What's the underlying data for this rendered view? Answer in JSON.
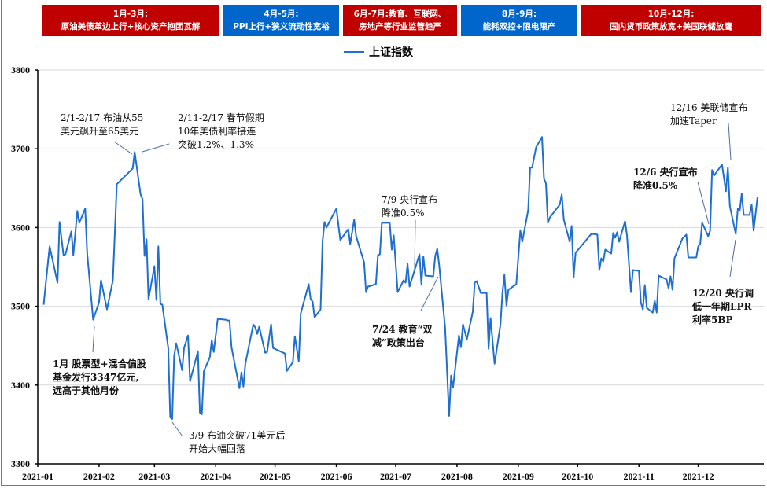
{
  "periods": [
    {
      "line1": "1月-3月:",
      "line2": "原油美债革边上行+核心资产抱团瓦解",
      "color": "#C00000"
    },
    {
      "line1": "4月-5月:",
      "line2": "PPI上行+狭义流动性宽裕",
      "color": "#0066CC"
    },
    {
      "line1": "6月-7月:教育、互联网、",
      "line2": "房地产等行业监管趋严",
      "color": "#C00000"
    },
    {
      "line1": "8月-9月:",
      "line2": "能耗双控+限电限产",
      "color": "#0066CC"
    },
    {
      "line1": "10月-12月:",
      "line2": "国内货币政策放宽+美国联储放鹰",
      "color": "#C00000"
    }
  ],
  "annotations": [
    {
      "lines": [
        "2/1-2/17 布油从55",
        "美元飙升至65美元"
      ],
      "bold": false
    },
    {
      "lines": [
        "2/11-2/17 春节假期",
        "10年美债利率接连",
        "突破1.2%、1.3%"
      ],
      "bold": false
    },
    {
      "lines": [
        "1月 股票型+混合偏股",
        "基金发行3347亿元,",
        "远高于其他月份"
      ],
      "bold": true
    },
    {
      "lines": [
        "3/9 布油突破71美元后",
        "开始大幅回落"
      ],
      "bold": false
    },
    {
      "lines": [
        "7/9 央行宣布",
        "降准0.5%"
      ],
      "bold": false
    },
    {
      "lines": [
        "7/24 教育“双",
        "减”政策出台"
      ],
      "bold": true
    },
    {
      "lines": [
        "12/6 央行宣布",
        "降准0.5%"
      ],
      "bold": true
    },
    {
      "lines": [
        "12/16 美联储宣布",
        "加速Taper"
      ],
      "bold": false
    },
    {
      "lines": [
        "12/20 央行调",
        "低一年期LPR",
        "利率5BP"
      ],
      "bold": true
    }
  ],
  "chart_data": {
    "type": "line",
    "title": "",
    "xlabel": "",
    "ylabel": "",
    "ylim": [
      3300,
      3800
    ],
    "yticks": [
      3300,
      3400,
      3500,
      3600,
      3700,
      3800
    ],
    "xticks": [
      "2021-01",
      "2021-02",
      "2021-03",
      "2021-04",
      "2021-05",
      "2021-06",
      "2021-07",
      "2021-08",
      "2021-09",
      "2021-10",
      "2021-11",
      "2021-12"
    ],
    "xlim": [
      "2021-01-01",
      "2021-12-31"
    ],
    "grid": true,
    "legend_position": "top-center",
    "series": [
      {
        "name": "上证指数",
        "color": "#1F6FD1",
        "points": [
          [
            "2021-01-04",
            3502
          ],
          [
            "2021-01-05",
            3528
          ],
          [
            "2021-01-07",
            3576
          ],
          [
            "2021-01-11",
            3530
          ],
          [
            "2021-01-12",
            3607
          ],
          [
            "2021-01-14",
            3565
          ],
          [
            "2021-01-15",
            3566
          ],
          [
            "2021-01-18",
            3595
          ],
          [
            "2021-01-19",
            3565
          ],
          [
            "2021-01-21",
            3621
          ],
          [
            "2021-01-22",
            3606
          ],
          [
            "2021-01-25",
            3624
          ],
          [
            "2021-01-26",
            3568
          ],
          [
            "2021-01-29",
            3483
          ],
          [
            "2021-02-01",
            3505
          ],
          [
            "2021-02-02",
            3533
          ],
          [
            "2021-02-05",
            3496
          ],
          [
            "2021-02-08",
            3533
          ],
          [
            "2021-02-10",
            3655
          ],
          [
            "2021-02-18",
            3675
          ],
          [
            "2021-02-19",
            3696
          ],
          [
            "2021-02-22",
            3642
          ],
          [
            "2021-02-23",
            3636
          ],
          [
            "2021-02-24",
            3564
          ],
          [
            "2021-02-25",
            3585
          ],
          [
            "2021-02-26",
            3509
          ],
          [
            "2021-03-01",
            3551
          ],
          [
            "2021-03-02",
            3508
          ],
          [
            "2021-03-03",
            3576
          ],
          [
            "2021-03-04",
            3503
          ],
          [
            "2021-03-05",
            3502
          ],
          [
            "2021-03-08",
            3447
          ],
          [
            "2021-03-09",
            3359
          ],
          [
            "2021-03-10",
            3357
          ],
          [
            "2021-03-11",
            3437
          ],
          [
            "2021-03-12",
            3453
          ],
          [
            "2021-03-15",
            3419
          ],
          [
            "2021-03-16",
            3447
          ],
          [
            "2021-03-18",
            3463
          ],
          [
            "2021-03-19",
            3405
          ],
          [
            "2021-03-23",
            3443
          ],
          [
            "2021-03-24",
            3365
          ],
          [
            "2021-03-25",
            3363
          ],
          [
            "2021-03-26",
            3418
          ],
          [
            "2021-03-29",
            3435
          ],
          [
            "2021-03-30",
            3457
          ],
          [
            "2021-03-31",
            3442
          ],
          [
            "2021-04-02",
            3484
          ],
          [
            "2021-04-06",
            3483
          ],
          [
            "2021-04-07",
            3482
          ],
          [
            "2021-04-08",
            3482
          ],
          [
            "2021-04-09",
            3448
          ],
          [
            "2021-04-13",
            3396
          ],
          [
            "2021-04-14",
            3416
          ],
          [
            "2021-04-15",
            3398
          ],
          [
            "2021-04-16",
            3427
          ],
          [
            "2021-04-20",
            3477
          ],
          [
            "2021-04-21",
            3473
          ],
          [
            "2021-04-22",
            3465
          ],
          [
            "2021-04-23",
            3474
          ],
          [
            "2021-04-26",
            3441
          ],
          [
            "2021-04-27",
            3442
          ],
          [
            "2021-04-29",
            3477
          ],
          [
            "2021-04-30",
            3447
          ],
          [
            "2021-05-06",
            3440
          ],
          [
            "2021-05-07",
            3418
          ],
          [
            "2021-05-10",
            3429
          ],
          [
            "2021-05-11",
            3462
          ],
          [
            "2021-05-13",
            3430
          ],
          [
            "2021-05-14",
            3491
          ],
          [
            "2021-05-18",
            3528
          ],
          [
            "2021-05-19",
            3509
          ],
          [
            "2021-05-20",
            3506
          ],
          [
            "2021-05-21",
            3486
          ],
          [
            "2021-05-24",
            3496
          ],
          [
            "2021-05-25",
            3582
          ],
          [
            "2021-05-26",
            3607
          ],
          [
            "2021-05-27",
            3600
          ],
          [
            "2021-06-01",
            3624
          ],
          [
            "2021-06-03",
            3584
          ],
          [
            "2021-06-07",
            3598
          ],
          [
            "2021-06-08",
            3579
          ],
          [
            "2021-06-10",
            3610
          ],
          [
            "2021-06-11",
            3589
          ],
          [
            "2021-06-15",
            3556
          ],
          [
            "2021-06-16",
            3518
          ],
          [
            "2021-06-17",
            3525
          ],
          [
            "2021-06-21",
            3528
          ],
          [
            "2021-06-22",
            3565
          ],
          [
            "2021-06-23",
            3566
          ],
          [
            "2021-06-24",
            3606
          ],
          [
            "2021-06-28",
            3606
          ],
          [
            "2021-06-29",
            3572
          ],
          [
            "2021-06-30",
            3590
          ],
          [
            "2021-07-02",
            3518
          ],
          [
            "2021-07-05",
            3533
          ],
          [
            "2021-07-06",
            3530
          ],
          [
            "2021-07-07",
            3554
          ],
          [
            "2021-07-08",
            3525
          ],
          [
            "2021-07-13",
            3566
          ],
          [
            "2021-07-14",
            3528
          ],
          [
            "2021-07-15",
            3563
          ],
          [
            "2021-07-16",
            3539
          ],
          [
            "2021-07-20",
            3538
          ],
          [
            "2021-07-21",
            3564
          ],
          [
            "2021-07-22",
            3573
          ],
          [
            "2021-07-23",
            3552
          ],
          [
            "2021-07-26",
            3473
          ],
          [
            "2021-07-28",
            3361
          ],
          [
            "2021-07-29",
            3412
          ],
          [
            "2021-07-30",
            3397
          ],
          [
            "2021-08-02",
            3463
          ],
          [
            "2021-08-03",
            3448
          ],
          [
            "2021-08-04",
            3477
          ],
          [
            "2021-08-06",
            3458
          ],
          [
            "2021-08-09",
            3493
          ],
          [
            "2021-08-10",
            3530
          ],
          [
            "2021-08-11",
            3532
          ],
          [
            "2021-08-13",
            3517
          ],
          [
            "2021-08-16",
            3517
          ],
          [
            "2021-08-17",
            3446
          ],
          [
            "2021-08-18",
            3485
          ],
          [
            "2021-08-20",
            3427
          ],
          [
            "2021-08-23",
            3477
          ],
          [
            "2021-08-24",
            3517
          ],
          [
            "2021-08-25",
            3540
          ],
          [
            "2021-08-26",
            3501
          ],
          [
            "2021-08-27",
            3521
          ],
          [
            "2021-08-31",
            3528
          ],
          [
            "2021-09-02",
            3596
          ],
          [
            "2021-09-03",
            3582
          ],
          [
            "2021-09-06",
            3622
          ],
          [
            "2021-09-07",
            3676
          ],
          [
            "2021-09-08",
            3676
          ],
          [
            "2021-09-10",
            3702
          ],
          [
            "2021-09-13",
            3715
          ],
          [
            "2021-09-14",
            3662
          ],
          [
            "2021-09-15",
            3656
          ],
          [
            "2021-09-16",
            3606
          ],
          [
            "2021-09-17",
            3613
          ],
          [
            "2021-09-22",
            3629
          ],
          [
            "2021-09-23",
            3642
          ],
          [
            "2021-09-24",
            3610
          ],
          [
            "2021-09-27",
            3582
          ],
          [
            "2021-09-28",
            3602
          ],
          [
            "2021-09-29",
            3537
          ],
          [
            "2021-09-30",
            3568
          ],
          [
            "2021-10-08",
            3592
          ],
          [
            "2021-10-11",
            3591
          ],
          [
            "2021-10-12",
            3546
          ],
          [
            "2021-10-13",
            3561
          ],
          [
            "2021-10-14",
            3557
          ],
          [
            "2021-10-15",
            3572
          ],
          [
            "2021-10-18",
            3567
          ],
          [
            "2021-10-19",
            3593
          ],
          [
            "2021-10-20",
            3587
          ],
          [
            "2021-10-21",
            3594
          ],
          [
            "2021-10-22",
            3582
          ],
          [
            "2021-10-25",
            3608
          ],
          [
            "2021-10-26",
            3589
          ],
          [
            "2021-10-28",
            3518
          ],
          [
            "2021-10-29",
            3546
          ],
          [
            "2021-11-01",
            3545
          ],
          [
            "2021-11-02",
            3505
          ],
          [
            "2021-11-03",
            3496
          ],
          [
            "2021-11-04",
            3527
          ],
          [
            "2021-11-05",
            3498
          ],
          [
            "2021-11-08",
            3492
          ],
          [
            "2021-11-09",
            3507
          ],
          [
            "2021-11-10",
            3492
          ],
          [
            "2021-11-11",
            3539
          ],
          [
            "2021-11-15",
            3534
          ],
          [
            "2021-11-16",
            3523
          ],
          [
            "2021-11-17",
            3538
          ],
          [
            "2021-11-18",
            3521
          ],
          [
            "2021-11-19",
            3561
          ],
          [
            "2021-11-23",
            3586
          ],
          [
            "2021-11-25",
            3591
          ],
          [
            "2021-11-26",
            3562
          ],
          [
            "2021-11-30",
            3562
          ],
          [
            "2021-12-01",
            3576
          ],
          [
            "2021-12-02",
            3579
          ],
          [
            "2021-12-03",
            3606
          ],
          [
            "2021-12-06",
            3589
          ],
          [
            "2021-12-07",
            3596
          ],
          [
            "2021-12-08",
            3673
          ],
          [
            "2021-12-09",
            3666
          ],
          [
            "2021-12-13",
            3680
          ],
          [
            "2021-12-15",
            3646
          ],
          [
            "2021-12-16",
            3676
          ],
          [
            "2021-12-17",
            3627
          ],
          [
            "2021-12-20",
            3592
          ],
          [
            "2021-12-21",
            3624
          ],
          [
            "2021-12-22",
            3622
          ],
          [
            "2021-12-23",
            3643
          ],
          [
            "2021-12-24",
            3616
          ],
          [
            "2021-12-27",
            3616
          ],
          [
            "2021-12-28",
            3629
          ],
          [
            "2021-12-29",
            3596
          ],
          [
            "2021-12-31",
            3639
          ]
        ]
      }
    ]
  }
}
